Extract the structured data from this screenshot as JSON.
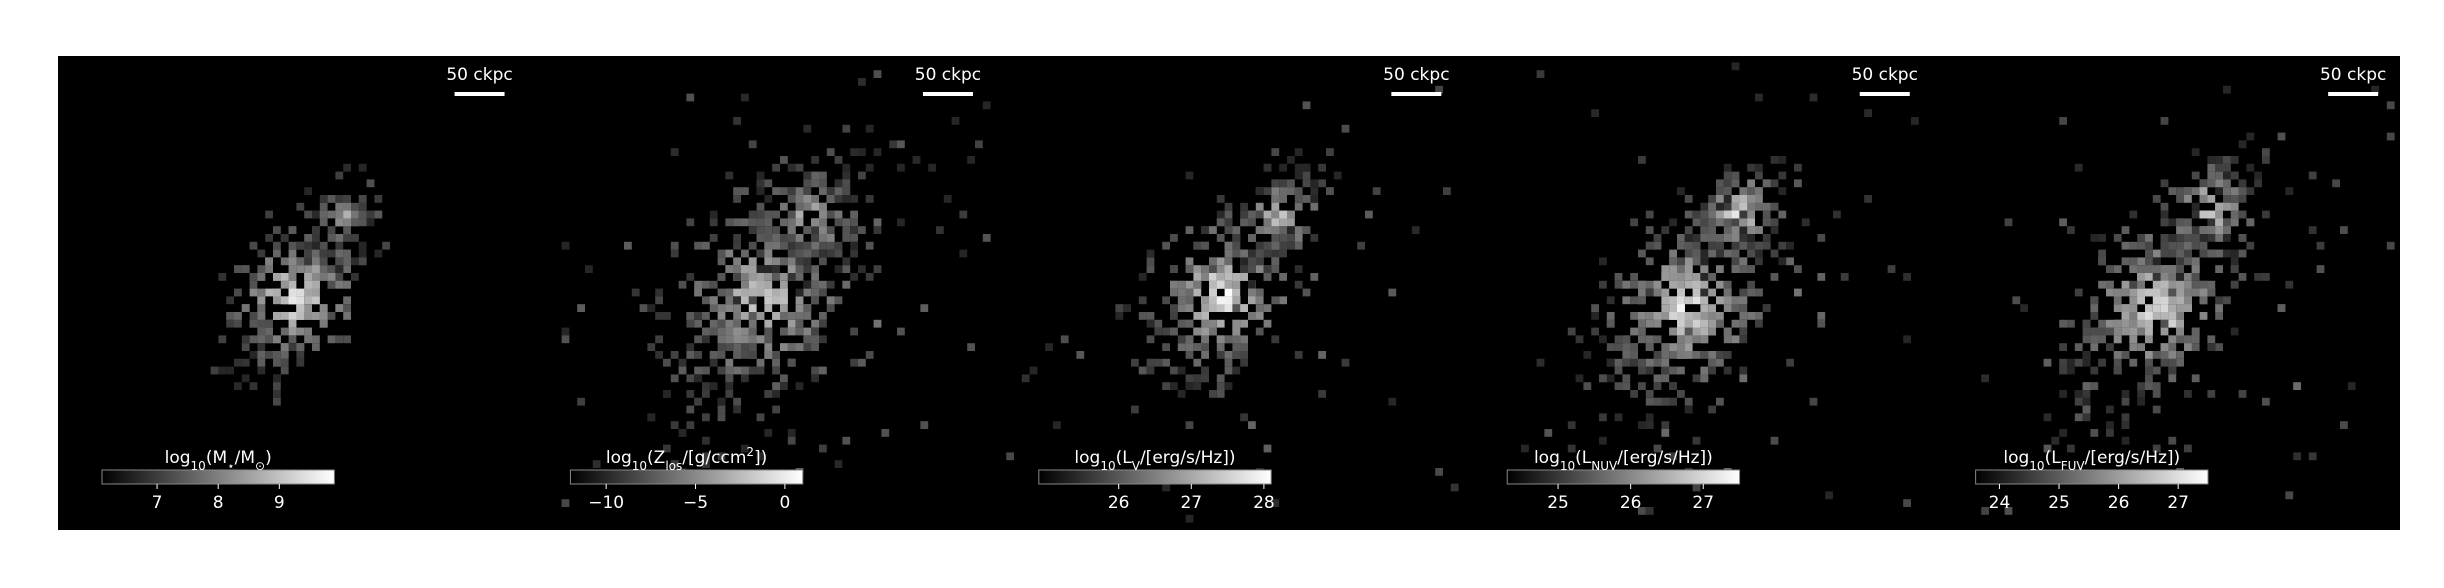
{
  "chart_data": [
    {
      "type": "image",
      "scalebar": "50 ckpc",
      "label_parts": [
        {
          "text": "log"
        },
        {
          "text": "10",
          "sub": true
        },
        {
          "text": "(M"
        },
        {
          "text": "⋆",
          "sub": true
        },
        {
          "text": "/M"
        },
        {
          "text": "⊙",
          "sub": true
        },
        {
          "text": ")"
        }
      ],
      "clim": [
        6.1,
        9.9
      ],
      "cticks": [
        7,
        8,
        9
      ]
    },
    {
      "type": "image",
      "scalebar": "50 ckpc",
      "label_parts": [
        {
          "text": "log"
        },
        {
          "text": "10",
          "sub": true
        },
        {
          "text": "(Z"
        },
        {
          "text": "los",
          "sub": true
        },
        {
          "text": "/[g/ccm"
        },
        {
          "text": "2",
          "sup": true
        },
        {
          "text": "])"
        }
      ],
      "clim": [
        -12,
        1
      ],
      "cticks": [
        {
          "value": -10,
          "label": "−10"
        },
        {
          "value": -5,
          "label": "−5"
        },
        0
      ]
    },
    {
      "type": "image",
      "scalebar": "50 ckpc",
      "label_parts": [
        {
          "text": "log"
        },
        {
          "text": "10",
          "sub": true
        },
        {
          "text": "(L"
        },
        {
          "text": "V",
          "sub": true
        },
        {
          "text": "/[erg/s/Hz])"
        }
      ],
      "clim": [
        24.9,
        28.1
      ],
      "cticks": [
        26,
        27,
        28
      ]
    },
    {
      "type": "image",
      "scalebar": "50 ckpc",
      "label_parts": [
        {
          "text": "log"
        },
        {
          "text": "10",
          "sub": true
        },
        {
          "text": "(L"
        },
        {
          "text": "NUV",
          "sub": true
        },
        {
          "text": "/[erg/s/Hz])"
        }
      ],
      "clim": [
        24.3,
        27.5
      ],
      "cticks": [
        25,
        26,
        27
      ]
    },
    {
      "type": "image",
      "scalebar": "50 ckpc",
      "label_parts": [
        {
          "text": "log"
        },
        {
          "text": "10",
          "sub": true
        },
        {
          "text": "(L"
        },
        {
          "text": "FUV",
          "sub": true
        },
        {
          "text": "/[erg/s/Hz])"
        }
      ],
      "clim": [
        23.6,
        27.5
      ],
      "cticks": [
        24,
        25,
        26,
        27
      ]
    }
  ]
}
